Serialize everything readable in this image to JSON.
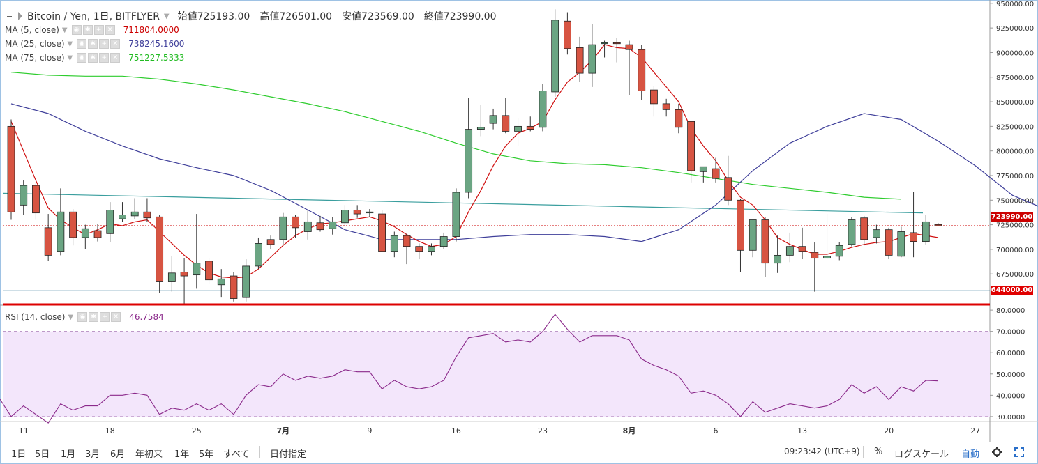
{
  "header": {
    "symbol": "Bitcoin / Yen, 1日, BITFLYER",
    "open": "始値725193.00",
    "high": "高値726501.00",
    "low": "安値723569.00",
    "close": "終値723990.00"
  },
  "indicators": [
    {
      "label": "MA (5, close)",
      "value": "711804.0000",
      "color": "#cc0000"
    },
    {
      "label": "MA (25, close)",
      "value": "738245.1600",
      "color": "#3f3f9a"
    },
    {
      "label": "MA (75, close)",
      "value": "751227.5333",
      "color": "#2ecc2e"
    }
  ],
  "rsi": {
    "label": "RSI (14, close)",
    "value": "46.7584",
    "color": "#8b2a8b"
  },
  "price_tags": {
    "last": "723990.00",
    "support": "644000.00"
  },
  "toolbar": {
    "timeframes": [
      "1日",
      "5日",
      "1月",
      "3月",
      "6月",
      "年初来",
      "1年",
      "5年",
      "すべて"
    ],
    "date_pick": "日付指定",
    "clock": "09:23:42 (UTC+9)",
    "percent": "%",
    "log_scale": "ログスケール",
    "auto": "自動",
    "settings_icon": "gear-icon",
    "fullscreen_icon": "fullscreen-icon"
  },
  "chart_data": [
    {
      "type": "candlestick",
      "title": "Bitcoin / Yen, 1日, BITFLYER",
      "x_tick_labels": [
        "11",
        "18",
        "25",
        "7月",
        "9",
        "16",
        "23",
        "8月",
        "6",
        "13",
        "20",
        "27"
      ],
      "y_tick_labels": [
        "950000.00",
        "925000.00",
        "900000.00",
        "875000.00",
        "850000.00",
        "825000.00",
        "800000.00",
        "775000.00",
        "750000.00",
        "725000.00",
        "700000.00",
        "675000.00"
      ],
      "ylim": [
        644000,
        952000
      ],
      "candles": [
        {
          "o": 825000,
          "h": 832000,
          "l": 730000,
          "c": 738000
        },
        {
          "o": 745000,
          "h": 770000,
          "l": 735000,
          "c": 765000
        },
        {
          "o": 765000,
          "h": 768000,
          "l": 730000,
          "c": 737000
        },
        {
          "o": 722000,
          "h": 736000,
          "l": 688000,
          "c": 694000
        },
        {
          "o": 698000,
          "h": 762000,
          "l": 694000,
          "c": 738000
        },
        {
          "o": 738000,
          "h": 741000,
          "l": 704000,
          "c": 712000
        },
        {
          "o": 712000,
          "h": 725000,
          "l": 700000,
          "c": 721000
        },
        {
          "o": 719000,
          "h": 726000,
          "l": 708000,
          "c": 712000
        },
        {
          "o": 716000,
          "h": 748000,
          "l": 707000,
          "c": 740000
        },
        {
          "o": 731000,
          "h": 748000,
          "l": 728000,
          "c": 735000
        },
        {
          "o": 734000,
          "h": 752000,
          "l": 731000,
          "c": 738000
        },
        {
          "o": 738000,
          "h": 752000,
          "l": 728000,
          "c": 732000
        },
        {
          "o": 733000,
          "h": 735000,
          "l": 656000,
          "c": 667000
        },
        {
          "o": 667000,
          "h": 693000,
          "l": 657000,
          "c": 676000
        },
        {
          "o": 677000,
          "h": 691000,
          "l": 645000,
          "c": 673000
        },
        {
          "o": 674000,
          "h": 736000,
          "l": 660000,
          "c": 686000
        },
        {
          "o": 688000,
          "h": 691000,
          "l": 665000,
          "c": 669000
        },
        {
          "o": 664000,
          "h": 680000,
          "l": 651000,
          "c": 670000
        },
        {
          "o": 673000,
          "h": 677000,
          "l": 647000,
          "c": 650000
        },
        {
          "o": 651000,
          "h": 690000,
          "l": 647000,
          "c": 683000
        },
        {
          "o": 683000,
          "h": 712000,
          "l": 680000,
          "c": 706000
        },
        {
          "o": 710000,
          "h": 714000,
          "l": 700000,
          "c": 705000
        },
        {
          "o": 710000,
          "h": 737000,
          "l": 705000,
          "c": 733000
        },
        {
          "o": 733000,
          "h": 735000,
          "l": 712000,
          "c": 722000
        },
        {
          "o": 718000,
          "h": 740000,
          "l": 710000,
          "c": 728000
        },
        {
          "o": 727000,
          "h": 734000,
          "l": 718000,
          "c": 720000
        },
        {
          "o": 721000,
          "h": 733000,
          "l": 715000,
          "c": 728000
        },
        {
          "o": 727000,
          "h": 745000,
          "l": 724000,
          "c": 740000
        },
        {
          "o": 740000,
          "h": 745000,
          "l": 732000,
          "c": 736000
        },
        {
          "o": 737000,
          "h": 741000,
          "l": 733000,
          "c": 738000
        },
        {
          "o": 736000,
          "h": 740000,
          "l": 698000,
          "c": 698000
        },
        {
          "o": 698000,
          "h": 718000,
          "l": 692000,
          "c": 714000
        },
        {
          "o": 714000,
          "h": 716000,
          "l": 685000,
          "c": 703000
        },
        {
          "o": 703000,
          "h": 706000,
          "l": 690000,
          "c": 698000
        },
        {
          "o": 698000,
          "h": 706000,
          "l": 694000,
          "c": 703000
        },
        {
          "o": 703000,
          "h": 717000,
          "l": 700000,
          "c": 713000
        },
        {
          "o": 713000,
          "h": 762000,
          "l": 708000,
          "c": 758000
        },
        {
          "o": 758000,
          "h": 854000,
          "l": 752000,
          "c": 822000
        },
        {
          "o": 822000,
          "h": 847000,
          "l": 815000,
          "c": 824000
        },
        {
          "o": 828000,
          "h": 843000,
          "l": 822000,
          "c": 836000
        },
        {
          "o": 836000,
          "h": 854000,
          "l": 818000,
          "c": 820000
        },
        {
          "o": 820000,
          "h": 833000,
          "l": 805000,
          "c": 825000
        },
        {
          "o": 825000,
          "h": 835000,
          "l": 820000,
          "c": 822000
        },
        {
          "o": 824000,
          "h": 868000,
          "l": 820000,
          "c": 861000
        },
        {
          "o": 860000,
          "h": 944000,
          "l": 855000,
          "c": 933000
        },
        {
          "o": 932000,
          "h": 941000,
          "l": 898000,
          "c": 904000
        },
        {
          "o": 905000,
          "h": 916000,
          "l": 870000,
          "c": 879000
        },
        {
          "o": 879000,
          "h": 929000,
          "l": 865000,
          "c": 908000
        },
        {
          "o": 909000,
          "h": 912000,
          "l": 895000,
          "c": 910000
        },
        {
          "o": 910000,
          "h": 915000,
          "l": 890000,
          "c": 909000
        },
        {
          "o": 908000,
          "h": 912000,
          "l": 857000,
          "c": 903000
        },
        {
          "o": 903000,
          "h": 908000,
          "l": 852000,
          "c": 861000
        },
        {
          "o": 862000,
          "h": 866000,
          "l": 835000,
          "c": 848000
        },
        {
          "o": 848000,
          "h": 853000,
          "l": 835000,
          "c": 842000
        },
        {
          "o": 842000,
          "h": 848000,
          "l": 818000,
          "c": 824000
        },
        {
          "o": 830000,
          "h": 830000,
          "l": 768000,
          "c": 780000
        },
        {
          "o": 779000,
          "h": 784000,
          "l": 768000,
          "c": 784000
        },
        {
          "o": 782000,
          "h": 793000,
          "l": 768000,
          "c": 772000
        },
        {
          "o": 773000,
          "h": 795000,
          "l": 745000,
          "c": 750000
        },
        {
          "o": 750000,
          "h": 751000,
          "l": 677000,
          "c": 699000
        },
        {
          "o": 699000,
          "h": 730000,
          "l": 692000,
          "c": 730000
        },
        {
          "o": 730000,
          "h": 733000,
          "l": 672000,
          "c": 686000
        },
        {
          "o": 686000,
          "h": 714000,
          "l": 676000,
          "c": 694000
        },
        {
          "o": 694000,
          "h": 717000,
          "l": 687000,
          "c": 703000
        },
        {
          "o": 703000,
          "h": 722000,
          "l": 690000,
          "c": 698000
        },
        {
          "o": 697000,
          "h": 707000,
          "l": 657000,
          "c": 691000
        },
        {
          "o": 691000,
          "h": 736000,
          "l": 690000,
          "c": 693000
        },
        {
          "o": 693000,
          "h": 707000,
          "l": 689000,
          "c": 704000
        },
        {
          "o": 705000,
          "h": 733000,
          "l": 703000,
          "c": 730000
        },
        {
          "o": 732000,
          "h": 734000,
          "l": 704000,
          "c": 710000
        },
        {
          "o": 712000,
          "h": 725000,
          "l": 706000,
          "c": 720000
        },
        {
          "o": 720000,
          "h": 722000,
          "l": 690000,
          "c": 694000
        },
        {
          "o": 693000,
          "h": 723000,
          "l": 692000,
          "c": 718000
        },
        {
          "o": 717000,
          "h": 758000,
          "l": 692000,
          "c": 708000
        },
        {
          "o": 708000,
          "h": 735000,
          "l": 705000,
          "c": 728000
        },
        {
          "o": 725193,
          "h": 726501,
          "l": 723569,
          "c": 723990
        }
      ],
      "ma5": [
        830000,
        800000,
        770000,
        742000,
        730000,
        722000,
        715000,
        720000,
        726000,
        724000,
        728000,
        730000,
        718000,
        706000,
        694000,
        684000,
        676000,
        672000,
        671000,
        672000,
        680000,
        692000,
        704000,
        714000,
        721000,
        726000,
        727000,
        729000,
        731000,
        733000,
        729000,
        723000,
        715000,
        708000,
        703000,
        705000,
        713000,
        738000,
        760000,
        785000,
        805000,
        818000,
        823000,
        830000,
        852000,
        870000,
        880000,
        892000,
        908000,
        905000,
        904000,
        895000,
        880000,
        865000,
        850000,
        823000,
        805000,
        790000,
        770000,
        753000,
        745000,
        730000,
        712000,
        705000,
        700000,
        695000,
        695000,
        698000,
        702000,
        705000,
        707000,
        708000,
        712000,
        716000,
        714000,
        712000
      ],
      "ma25_every3": [
        848000,
        838000,
        820000,
        805000,
        792000,
        783000,
        775000,
        760000,
        740000,
        720000,
        710000,
        710000,
        710000,
        713000,
        715000,
        715000,
        713000,
        708000,
        720000,
        745000,
        780000,
        808000,
        825000,
        838000,
        832000,
        810000,
        785000,
        755000,
        739000
      ],
      "ma75_every3": [
        880000,
        877000,
        876000,
        876000,
        873000,
        868000,
        862000,
        855000,
        848000,
        840000,
        830000,
        820000,
        808000,
        797000,
        790000,
        787000,
        786000,
        783000,
        778000,
        772000,
        766000,
        762000,
        758000,
        753000,
        751000
      ]
    },
    {
      "type": "line",
      "title": "RSI (14, close)",
      "y_tick_labels": [
        "80.0000",
        "70.0000",
        "60.0000",
        "50.0000",
        "40.0000",
        "30.0000"
      ],
      "ylim": [
        28,
        82
      ],
      "band": [
        30,
        70
      ],
      "values": [
        39,
        30,
        35,
        31,
        27,
        36,
        33,
        35,
        35,
        40,
        40,
        41,
        40,
        31,
        34,
        33,
        36,
        33,
        36,
        31,
        40,
        45,
        44,
        50,
        47,
        49,
        48,
        49,
        52,
        51,
        51,
        43,
        47,
        44,
        43,
        44,
        47,
        58,
        67,
        68,
        69,
        65,
        66,
        65,
        70,
        78,
        71,
        65,
        68,
        68,
        68,
        66,
        57,
        54,
        52,
        49,
        41,
        42,
        40,
        36,
        30,
        37,
        32,
        34,
        36,
        35,
        34,
        35,
        38,
        45,
        41,
        44,
        38,
        44,
        42,
        47,
        46.7584
      ]
    }
  ]
}
